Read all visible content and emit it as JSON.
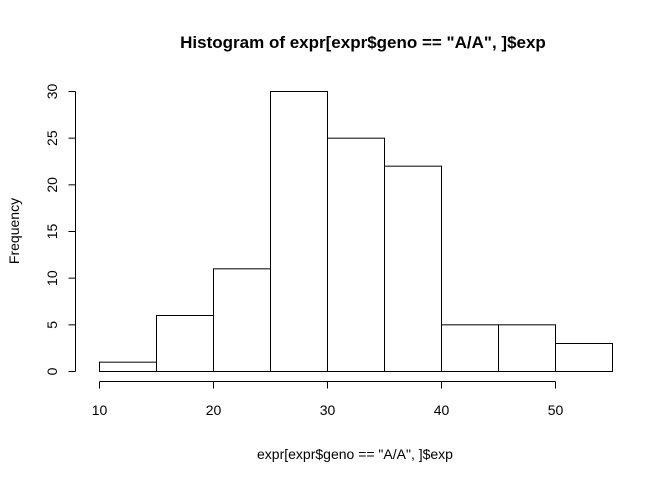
{
  "chart_data": {
    "type": "bar",
    "title": "Histogram of expr[expr$geno == \"A/A\", ]$exp",
    "xlabel": "expr[expr$geno == \"A/A\", ]$exp",
    "ylabel": "Frequency",
    "bins": [
      {
        "start": 10,
        "end": 15,
        "count": 1
      },
      {
        "start": 15,
        "end": 20,
        "count": 6
      },
      {
        "start": 20,
        "end": 25,
        "count": 11
      },
      {
        "start": 25,
        "end": 30,
        "count": 30
      },
      {
        "start": 30,
        "end": 35,
        "count": 25
      },
      {
        "start": 35,
        "end": 40,
        "count": 22
      },
      {
        "start": 40,
        "end": 45,
        "count": 5
      },
      {
        "start": 45,
        "end": 50,
        "count": 5
      },
      {
        "start": 50,
        "end": 55,
        "count": 3
      }
    ],
    "xlim": [
      10,
      55
    ],
    "ylim": [
      0,
      30
    ],
    "x_ticks": [
      10,
      20,
      30,
      40,
      50
    ],
    "y_ticks": [
      0,
      5,
      10,
      15,
      20,
      25,
      30
    ],
    "grid": false,
    "bar_fill": "#ffffff",
    "bar_stroke": "#000000"
  }
}
